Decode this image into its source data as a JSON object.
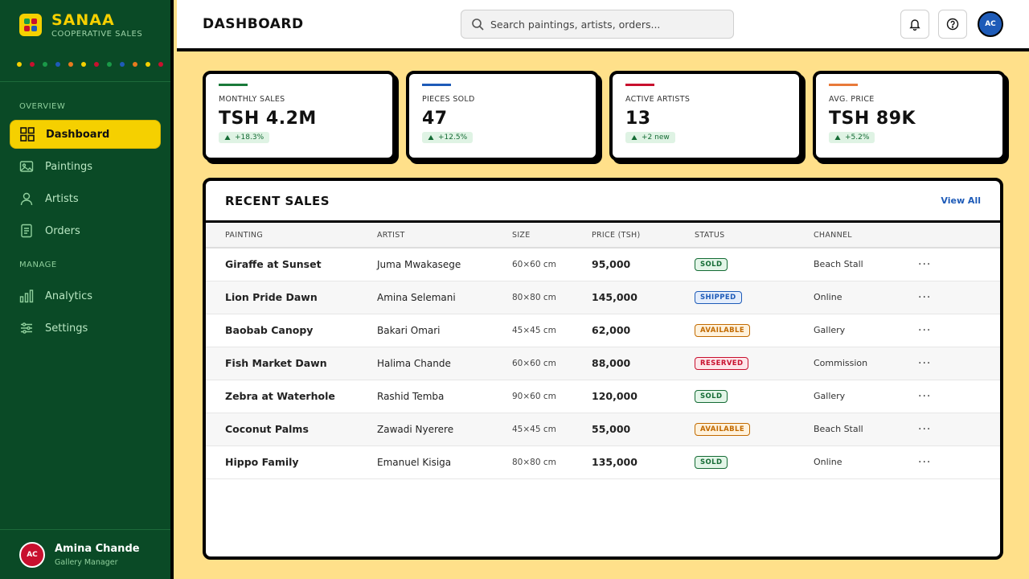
{
  "brand": {
    "name": "SANAA",
    "subtitle": "COOPERATIVE SALES"
  },
  "dot_colors": [
    "#f5d000",
    "#c8102e",
    "#1a9a48",
    "#1e5bb8",
    "#e87a1e",
    "#f5d000",
    "#c8102e",
    "#1a9a48",
    "#1e5bb8",
    "#e87a1e",
    "#f5d000",
    "#c8102e"
  ],
  "sidebar": {
    "section_overview": "OVERVIEW",
    "section_manage": "MANAGE",
    "items": [
      {
        "label": "Dashboard",
        "icon": "grid-icon",
        "active": true
      },
      {
        "label": "Paintings",
        "icon": "image-icon"
      },
      {
        "label": "Artists",
        "icon": "user-icon"
      },
      {
        "label": "Orders",
        "icon": "document-icon"
      },
      {
        "label": "Analytics",
        "icon": "bar-chart-icon"
      },
      {
        "label": "Settings",
        "icon": "sliders-icon"
      }
    ],
    "user": {
      "initials": "AC",
      "name": "Amina Chande",
      "role": "Gallery Manager"
    }
  },
  "header": {
    "title": "DASHBOARD",
    "search_placeholder": "Search paintings, artists, orders...",
    "avatar_initials": "AC"
  },
  "stats": [
    {
      "label": "MONTHLY SALES",
      "value": "TSH 4.2M",
      "delta": "+18.3%",
      "color": "#1a7a3a"
    },
    {
      "label": "PIECES SOLD",
      "value": "47",
      "delta": "+12.5%",
      "color": "#1e5bb8"
    },
    {
      "label": "ACTIVE ARTISTS",
      "value": "13",
      "delta": "+2 new",
      "color": "#c8102e"
    },
    {
      "label": "AVG. PRICE",
      "value": "TSH 89K",
      "delta": "+5.2%",
      "color": "#e87a3a"
    }
  ],
  "recent_sales": {
    "title": "RECENT SALES",
    "view_all": "View All",
    "columns": [
      "PAINTING",
      "ARTIST",
      "SIZE",
      "PRICE (TSH)",
      "STATUS",
      "CHANNEL"
    ],
    "rows": [
      {
        "painting": "Giraffe at Sunset",
        "artist": "Juma Mwakasege",
        "size": "60×60 cm",
        "price": "95,000",
        "status": "SOLD",
        "channel": "Beach Stall"
      },
      {
        "painting": "Lion Pride Dawn",
        "artist": "Amina Selemani",
        "size": "80×80 cm",
        "price": "145,000",
        "status": "SHIPPED",
        "channel": "Online"
      },
      {
        "painting": "Baobab Canopy",
        "artist": "Bakari Omari",
        "size": "45×45 cm",
        "price": "62,000",
        "status": "AVAILABLE",
        "channel": "Gallery"
      },
      {
        "painting": "Fish Market Dawn",
        "artist": "Halima Chande",
        "size": "60×60 cm",
        "price": "88,000",
        "status": "RESERVED",
        "channel": "Commission"
      },
      {
        "painting": "Zebra at Waterhole",
        "artist": "Rashid Temba",
        "size": "90×60 cm",
        "price": "120,000",
        "status": "SOLD",
        "channel": "Gallery"
      },
      {
        "painting": "Coconut Palms",
        "artist": "Zawadi Nyerere",
        "size": "45×45 cm",
        "price": "55,000",
        "status": "AVAILABLE",
        "channel": "Beach Stall"
      },
      {
        "painting": "Hippo Family",
        "artist": "Emanuel Kisiga",
        "size": "80×80 cm",
        "price": "135,000",
        "status": "SOLD",
        "channel": "Online"
      }
    ]
  }
}
